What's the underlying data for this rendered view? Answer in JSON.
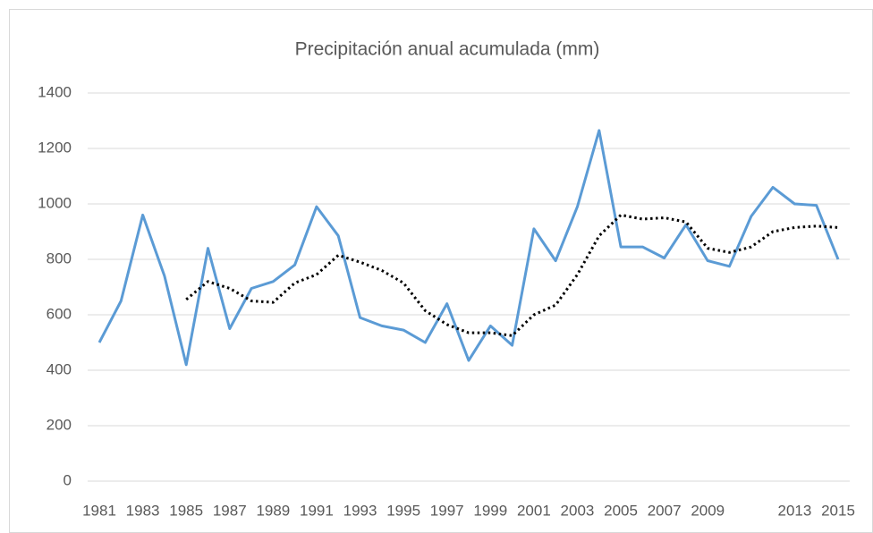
{
  "chart_data": {
    "type": "line",
    "title": "Precipitación anual acumulada (mm)",
    "categories": [
      "1981",
      null,
      "1983",
      null,
      "1985",
      null,
      "1987",
      null,
      "1989",
      null,
      "1991",
      null,
      "1993",
      null,
      "1995",
      null,
      "1997",
      null,
      "1999",
      null,
      "2001",
      null,
      "2003",
      null,
      "2005",
      null,
      "2007",
      null,
      "2009",
      null,
      null,
      null,
      "2013",
      null,
      "2015"
    ],
    "series": [
      {
        "color": "#5b9bd5",
        "style": "solid",
        "values": [
          500,
          650,
          960,
          740,
          420,
          840,
          550,
          695,
          720,
          780,
          990,
          885,
          590,
          560,
          545,
          500,
          640,
          435,
          560,
          490,
          910,
          795,
          990,
          1265,
          845,
          845,
          805,
          925,
          795,
          775,
          955,
          1060,
          1000,
          995,
          800
        ]
      },
      {
        "color": "#000000",
        "style": "dotted",
        "values": [
          null,
          null,
          null,
          null,
          655,
          720,
          695,
          650,
          645,
          715,
          745,
          815,
          790,
          760,
          715,
          615,
          565,
          535,
          535,
          525,
          600,
          635,
          745,
          885,
          960,
          945,
          950,
          935,
          840,
          825,
          845,
          900,
          915,
          920,
          915
        ]
      }
    ],
    "ylim": [
      0,
      1400
    ],
    "yticks": [
      0,
      200,
      400,
      600,
      800,
      1000,
      1200,
      1400
    ],
    "grid": true
  }
}
